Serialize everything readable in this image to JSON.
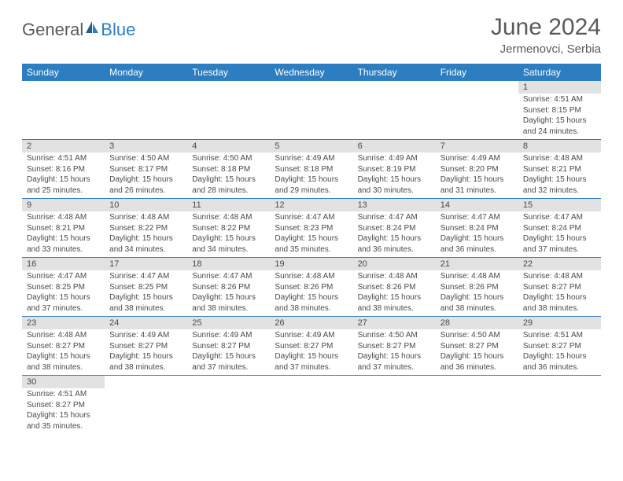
{
  "logo": {
    "part1": "General",
    "part2": "Blue"
  },
  "title": "June 2024",
  "location": "Jermenovci, Serbia",
  "colors": {
    "header_bg": "#2d7ec0",
    "header_text": "#ffffff",
    "daynum_bg": "#e2e2e2",
    "body_text": "#4a4a4a",
    "title_text": "#5a5a5a",
    "border": "#2d7ec0",
    "background": "#ffffff"
  },
  "dayNames": [
    "Sunday",
    "Monday",
    "Tuesday",
    "Wednesday",
    "Thursday",
    "Friday",
    "Saturday"
  ],
  "weeks": [
    [
      null,
      null,
      null,
      null,
      null,
      null,
      {
        "n": "1",
        "sr": "Sunrise: 4:51 AM",
        "ss": "Sunset: 8:15 PM",
        "d1": "Daylight: 15 hours",
        "d2": "and 24 minutes."
      }
    ],
    [
      {
        "n": "2",
        "sr": "Sunrise: 4:51 AM",
        "ss": "Sunset: 8:16 PM",
        "d1": "Daylight: 15 hours",
        "d2": "and 25 minutes."
      },
      {
        "n": "3",
        "sr": "Sunrise: 4:50 AM",
        "ss": "Sunset: 8:17 PM",
        "d1": "Daylight: 15 hours",
        "d2": "and 26 minutes."
      },
      {
        "n": "4",
        "sr": "Sunrise: 4:50 AM",
        "ss": "Sunset: 8:18 PM",
        "d1": "Daylight: 15 hours",
        "d2": "and 28 minutes."
      },
      {
        "n": "5",
        "sr": "Sunrise: 4:49 AM",
        "ss": "Sunset: 8:18 PM",
        "d1": "Daylight: 15 hours",
        "d2": "and 29 minutes."
      },
      {
        "n": "6",
        "sr": "Sunrise: 4:49 AM",
        "ss": "Sunset: 8:19 PM",
        "d1": "Daylight: 15 hours",
        "d2": "and 30 minutes."
      },
      {
        "n": "7",
        "sr": "Sunrise: 4:49 AM",
        "ss": "Sunset: 8:20 PM",
        "d1": "Daylight: 15 hours",
        "d2": "and 31 minutes."
      },
      {
        "n": "8",
        "sr": "Sunrise: 4:48 AM",
        "ss": "Sunset: 8:21 PM",
        "d1": "Daylight: 15 hours",
        "d2": "and 32 minutes."
      }
    ],
    [
      {
        "n": "9",
        "sr": "Sunrise: 4:48 AM",
        "ss": "Sunset: 8:21 PM",
        "d1": "Daylight: 15 hours",
        "d2": "and 33 minutes."
      },
      {
        "n": "10",
        "sr": "Sunrise: 4:48 AM",
        "ss": "Sunset: 8:22 PM",
        "d1": "Daylight: 15 hours",
        "d2": "and 34 minutes."
      },
      {
        "n": "11",
        "sr": "Sunrise: 4:48 AM",
        "ss": "Sunset: 8:22 PM",
        "d1": "Daylight: 15 hours",
        "d2": "and 34 minutes."
      },
      {
        "n": "12",
        "sr": "Sunrise: 4:47 AM",
        "ss": "Sunset: 8:23 PM",
        "d1": "Daylight: 15 hours",
        "d2": "and 35 minutes."
      },
      {
        "n": "13",
        "sr": "Sunrise: 4:47 AM",
        "ss": "Sunset: 8:24 PM",
        "d1": "Daylight: 15 hours",
        "d2": "and 36 minutes."
      },
      {
        "n": "14",
        "sr": "Sunrise: 4:47 AM",
        "ss": "Sunset: 8:24 PM",
        "d1": "Daylight: 15 hours",
        "d2": "and 36 minutes."
      },
      {
        "n": "15",
        "sr": "Sunrise: 4:47 AM",
        "ss": "Sunset: 8:24 PM",
        "d1": "Daylight: 15 hours",
        "d2": "and 37 minutes."
      }
    ],
    [
      {
        "n": "16",
        "sr": "Sunrise: 4:47 AM",
        "ss": "Sunset: 8:25 PM",
        "d1": "Daylight: 15 hours",
        "d2": "and 37 minutes."
      },
      {
        "n": "17",
        "sr": "Sunrise: 4:47 AM",
        "ss": "Sunset: 8:25 PM",
        "d1": "Daylight: 15 hours",
        "d2": "and 38 minutes."
      },
      {
        "n": "18",
        "sr": "Sunrise: 4:47 AM",
        "ss": "Sunset: 8:26 PM",
        "d1": "Daylight: 15 hours",
        "d2": "and 38 minutes."
      },
      {
        "n": "19",
        "sr": "Sunrise: 4:48 AM",
        "ss": "Sunset: 8:26 PM",
        "d1": "Daylight: 15 hours",
        "d2": "and 38 minutes."
      },
      {
        "n": "20",
        "sr": "Sunrise: 4:48 AM",
        "ss": "Sunset: 8:26 PM",
        "d1": "Daylight: 15 hours",
        "d2": "and 38 minutes."
      },
      {
        "n": "21",
        "sr": "Sunrise: 4:48 AM",
        "ss": "Sunset: 8:26 PM",
        "d1": "Daylight: 15 hours",
        "d2": "and 38 minutes."
      },
      {
        "n": "22",
        "sr": "Sunrise: 4:48 AM",
        "ss": "Sunset: 8:27 PM",
        "d1": "Daylight: 15 hours",
        "d2": "and 38 minutes."
      }
    ],
    [
      {
        "n": "23",
        "sr": "Sunrise: 4:48 AM",
        "ss": "Sunset: 8:27 PM",
        "d1": "Daylight: 15 hours",
        "d2": "and 38 minutes."
      },
      {
        "n": "24",
        "sr": "Sunrise: 4:49 AM",
        "ss": "Sunset: 8:27 PM",
        "d1": "Daylight: 15 hours",
        "d2": "and 38 minutes."
      },
      {
        "n": "25",
        "sr": "Sunrise: 4:49 AM",
        "ss": "Sunset: 8:27 PM",
        "d1": "Daylight: 15 hours",
        "d2": "and 37 minutes."
      },
      {
        "n": "26",
        "sr": "Sunrise: 4:49 AM",
        "ss": "Sunset: 8:27 PM",
        "d1": "Daylight: 15 hours",
        "d2": "and 37 minutes."
      },
      {
        "n": "27",
        "sr": "Sunrise: 4:50 AM",
        "ss": "Sunset: 8:27 PM",
        "d1": "Daylight: 15 hours",
        "d2": "and 37 minutes."
      },
      {
        "n": "28",
        "sr": "Sunrise: 4:50 AM",
        "ss": "Sunset: 8:27 PM",
        "d1": "Daylight: 15 hours",
        "d2": "and 36 minutes."
      },
      {
        "n": "29",
        "sr": "Sunrise: 4:51 AM",
        "ss": "Sunset: 8:27 PM",
        "d1": "Daylight: 15 hours",
        "d2": "and 36 minutes."
      }
    ],
    [
      {
        "n": "30",
        "sr": "Sunrise: 4:51 AM",
        "ss": "Sunset: 8:27 PM",
        "d1": "Daylight: 15 hours",
        "d2": "and 35 minutes."
      },
      null,
      null,
      null,
      null,
      null,
      null
    ]
  ]
}
